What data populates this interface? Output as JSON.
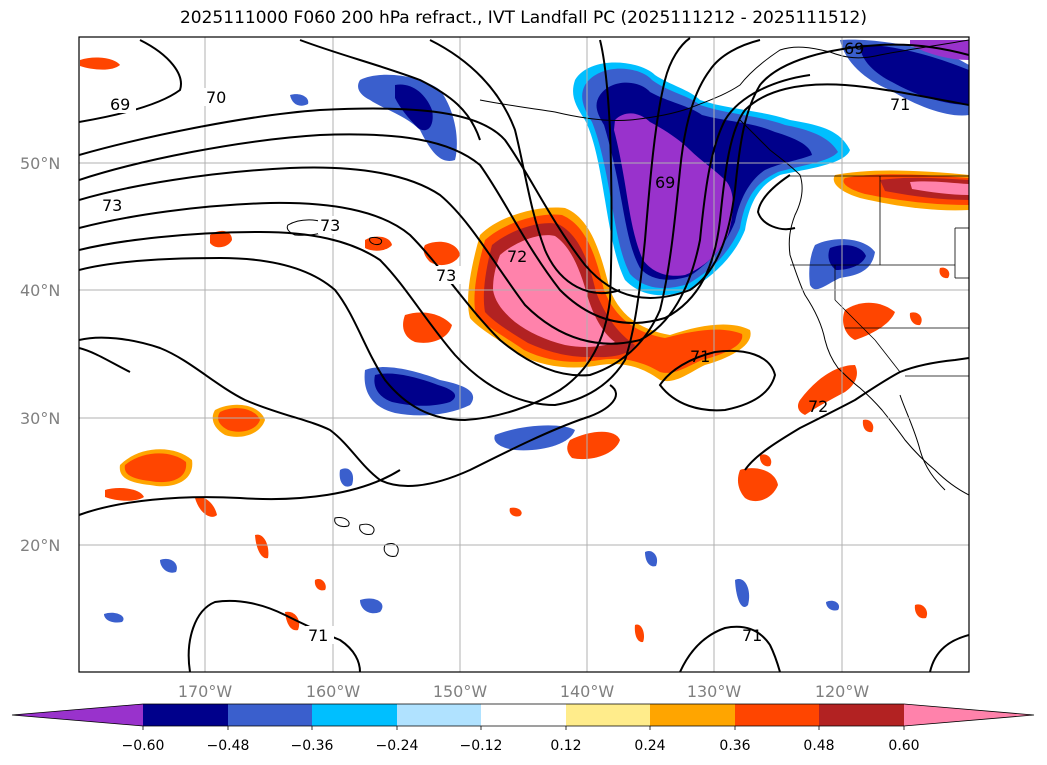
{
  "title": "2025111000 F060 200 hPa refract., IVT Landfall PC (2025111212 - 2025111512)",
  "latitude_labels": [
    "50°N",
    "40°N",
    "30°N",
    "20°N"
  ],
  "longitude_labels": [
    "170°W",
    "160°W",
    "150°W",
    "140°W",
    "130°W",
    "120°W"
  ],
  "contour_labels": [
    "69",
    "70",
    "73",
    "73",
    "73",
    "72",
    "69",
    "71",
    "72",
    "71",
    "71",
    "69",
    "71"
  ],
  "colorbar": {
    "ticks": [
      "−0.60",
      "−0.48",
      "−0.36",
      "−0.24",
      "−0.12",
      "0.12",
      "0.24",
      "0.36",
      "0.48",
      "0.60"
    ],
    "colors": [
      "#9932cc",
      "#00008b",
      "#3a5fcd",
      "#00bfff",
      "#b0e2ff",
      "#ffffff",
      "#ffec8b",
      "#ffa500",
      "#ff4500",
      "#b22222",
      "#ff82ab"
    ]
  }
}
